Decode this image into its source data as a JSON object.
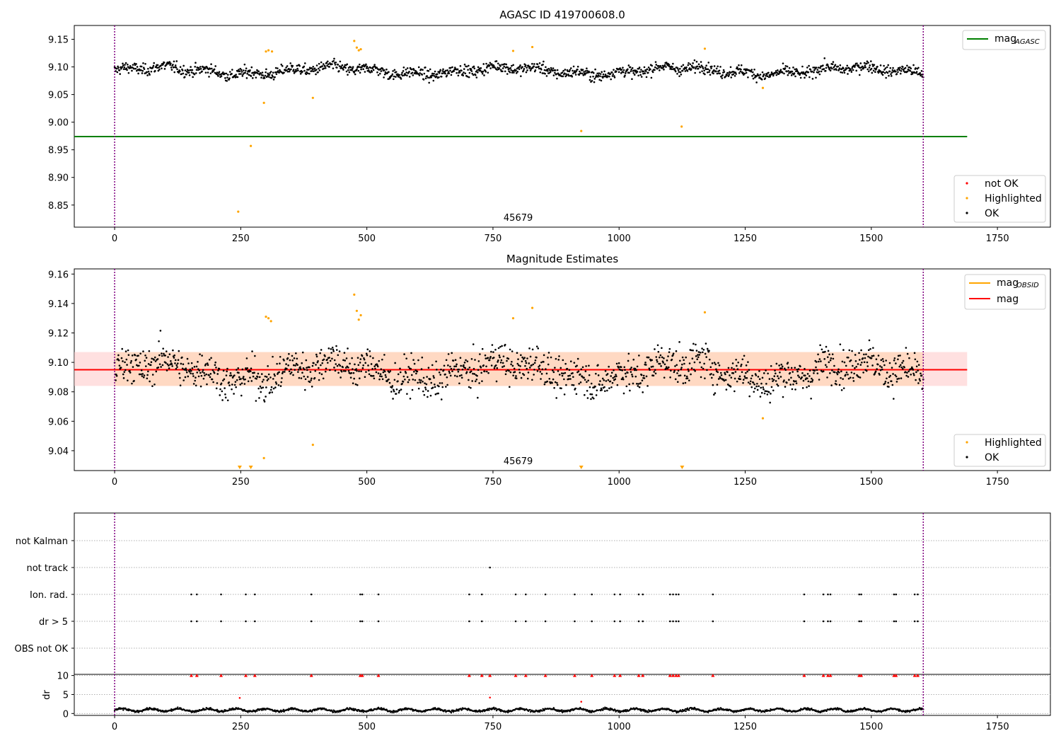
{
  "chart_data": [
    {
      "type": "scatter",
      "title": "AGASC ID 419700608.0",
      "xlim": [
        -80,
        1855
      ],
      "ylim": [
        8.81,
        9.175
      ],
      "xticks": [
        0,
        250,
        500,
        750,
        1000,
        1250,
        1500,
        1750
      ],
      "yticks": [
        8.85,
        8.9,
        8.95,
        9.0,
        9.05,
        9.1,
        9.15
      ],
      "vlines": [
        0,
        1603
      ],
      "annotation": {
        "text": "45679",
        "x": 800
      },
      "legend_upper": {
        "placement": "upper-right",
        "entries": [
          {
            "label": "mag",
            "sub": "AGASC",
            "color": "#008000"
          }
        ]
      },
      "legend_lower": {
        "placement": "lower-right",
        "entries": [
          {
            "label": "not OK",
            "color": "#ff0000"
          },
          {
            "label": "Highlighted",
            "color": "#ffa500"
          },
          {
            "label": "OK",
            "color": "#000000"
          }
        ]
      },
      "hline": {
        "name": "mag AGASC",
        "y": 8.974,
        "x": [
          -80,
          1690
        ],
        "color": "#008000"
      },
      "ok_model": {
        "x_range": [
          0,
          1603
        ],
        "y_mean": 9.093,
        "y_scatter": 0.009,
        "count": 1500
      },
      "highlighted": [
        [
          245,
          8.838
        ],
        [
          270,
          8.957
        ],
        [
          296,
          9.035
        ],
        [
          300,
          9.128
        ],
        [
          305,
          9.13
        ],
        [
          312,
          9.128
        ],
        [
          393,
          9.044
        ],
        [
          475,
          9.147
        ],
        [
          480,
          9.135
        ],
        [
          484,
          9.13
        ],
        [
          488,
          9.132
        ],
        [
          790,
          9.129
        ],
        [
          828,
          9.136
        ],
        [
          925,
          8.984
        ],
        [
          1124,
          8.992
        ],
        [
          1170,
          9.133
        ],
        [
          1285,
          9.062
        ]
      ]
    },
    {
      "type": "scatter",
      "title": "Magnitude Estimates",
      "xlim": [
        -80,
        1855
      ],
      "ylim": [
        9.0265,
        9.1635
      ],
      "xticks": [
        0,
        250,
        500,
        750,
        1000,
        1250,
        1500,
        1750
      ],
      "yticks": [
        9.04,
        9.06,
        9.08,
        9.1,
        9.12,
        9.14,
        9.16
      ],
      "vlines": [
        0,
        1603
      ],
      "annotation": {
        "text": "45679",
        "x": 800
      },
      "legend_upper": {
        "placement": "upper-right",
        "entries": [
          {
            "label": "mag",
            "sub": "OBSID",
            "color": "#ffa500"
          },
          {
            "label": "mag",
            "color": "#ff0000"
          }
        ]
      },
      "legend_lower": {
        "placement": "lower-right",
        "entries": [
          {
            "label": "Highlighted",
            "color": "#ffa500"
          },
          {
            "label": "OK",
            "color": "#000000"
          }
        ]
      },
      "mag_line": {
        "y": 9.095,
        "x": [
          -80,
          1690
        ],
        "color": "#ff0000"
      },
      "band": {
        "y": [
          9.084,
          9.107
        ],
        "x": [
          -80,
          1690
        ],
        "color": "#ffcccc"
      },
      "obsid_band": {
        "y": [
          9.084,
          9.107
        ],
        "x": [
          0,
          1603
        ],
        "color": "#ffd8c0"
      },
      "ok_model": {
        "x_range": [
          0,
          1603
        ],
        "y_mean": 9.094,
        "y_scatter": 0.011,
        "count": 1500
      },
      "highlighted": [
        [
          296,
          9.035
        ],
        [
          300,
          9.131
        ],
        [
          305,
          9.13
        ],
        [
          310,
          9.128
        ],
        [
          393,
          9.044
        ],
        [
          475,
          9.146
        ],
        [
          480,
          9.135
        ],
        [
          484,
          9.129
        ],
        [
          488,
          9.132
        ],
        [
          790,
          9.13
        ],
        [
          828,
          9.137
        ],
        [
          1170,
          9.134
        ],
        [
          1285,
          9.062
        ]
      ],
      "clipped_low": [
        248,
        270,
        925,
        1125
      ]
    },
    {
      "type": "scatter",
      "title": "",
      "xlim": [
        -80,
        1855
      ],
      "categories": [
        "OBS not OK",
        "dr > 5",
        "Ion. rad.",
        "not track",
        "not Kalman"
      ],
      "flags": {
        "dr > 5": [
          152,
          163,
          211,
          260,
          278,
          390,
          487,
          491,
          523,
          703,
          728,
          795,
          815,
          854,
          912,
          946,
          991,
          1002,
          1039,
          1047,
          1101,
          1107,
          1113,
          1118,
          1186,
          1367,
          1405,
          1414,
          1419,
          1476,
          1480,
          1545,
          1549,
          1586,
          1592
        ],
        "Ion. rad.": [
          152,
          163,
          211,
          260,
          278,
          390,
          487,
          491,
          523,
          703,
          728,
          795,
          815,
          854,
          912,
          946,
          991,
          1002,
          1039,
          1047,
          1101,
          1107,
          1113,
          1118,
          1186,
          1367,
          1405,
          1414,
          1419,
          1476,
          1480,
          1545,
          1549,
          1586,
          1592
        ],
        "not track": [
          744
        ]
      },
      "vlines": [
        0,
        1603
      ]
    },
    {
      "type": "scatter",
      "title": "",
      "ylabel": "dr",
      "xlim": [
        -80,
        1855
      ],
      "ylim": [
        -0.5,
        10.3
      ],
      "xticks": [
        0,
        250,
        500,
        750,
        1000,
        1250,
        1500,
        1750
      ],
      "yticks": [
        0,
        5,
        10
      ],
      "vlines": [
        0,
        1603
      ],
      "flagged_x": [
        152,
        163,
        211,
        260,
        278,
        390,
        487,
        491,
        523,
        703,
        728,
        744,
        795,
        815,
        854,
        912,
        946,
        991,
        1002,
        1039,
        1047,
        1101,
        1107,
        1113,
        1118,
        1186,
        1367,
        1405,
        1414,
        1419,
        1476,
        1480,
        1545,
        1549,
        1586,
        1592
      ],
      "outliers": [
        [
          248,
          4.1
        ],
        [
          744,
          4.2
        ],
        [
          925,
          3.1
        ]
      ],
      "dr_model": {
        "x_range": [
          0,
          1603
        ],
        "y_mean": 0.9,
        "y_scatter": 0.4,
        "count": 1500
      }
    }
  ]
}
